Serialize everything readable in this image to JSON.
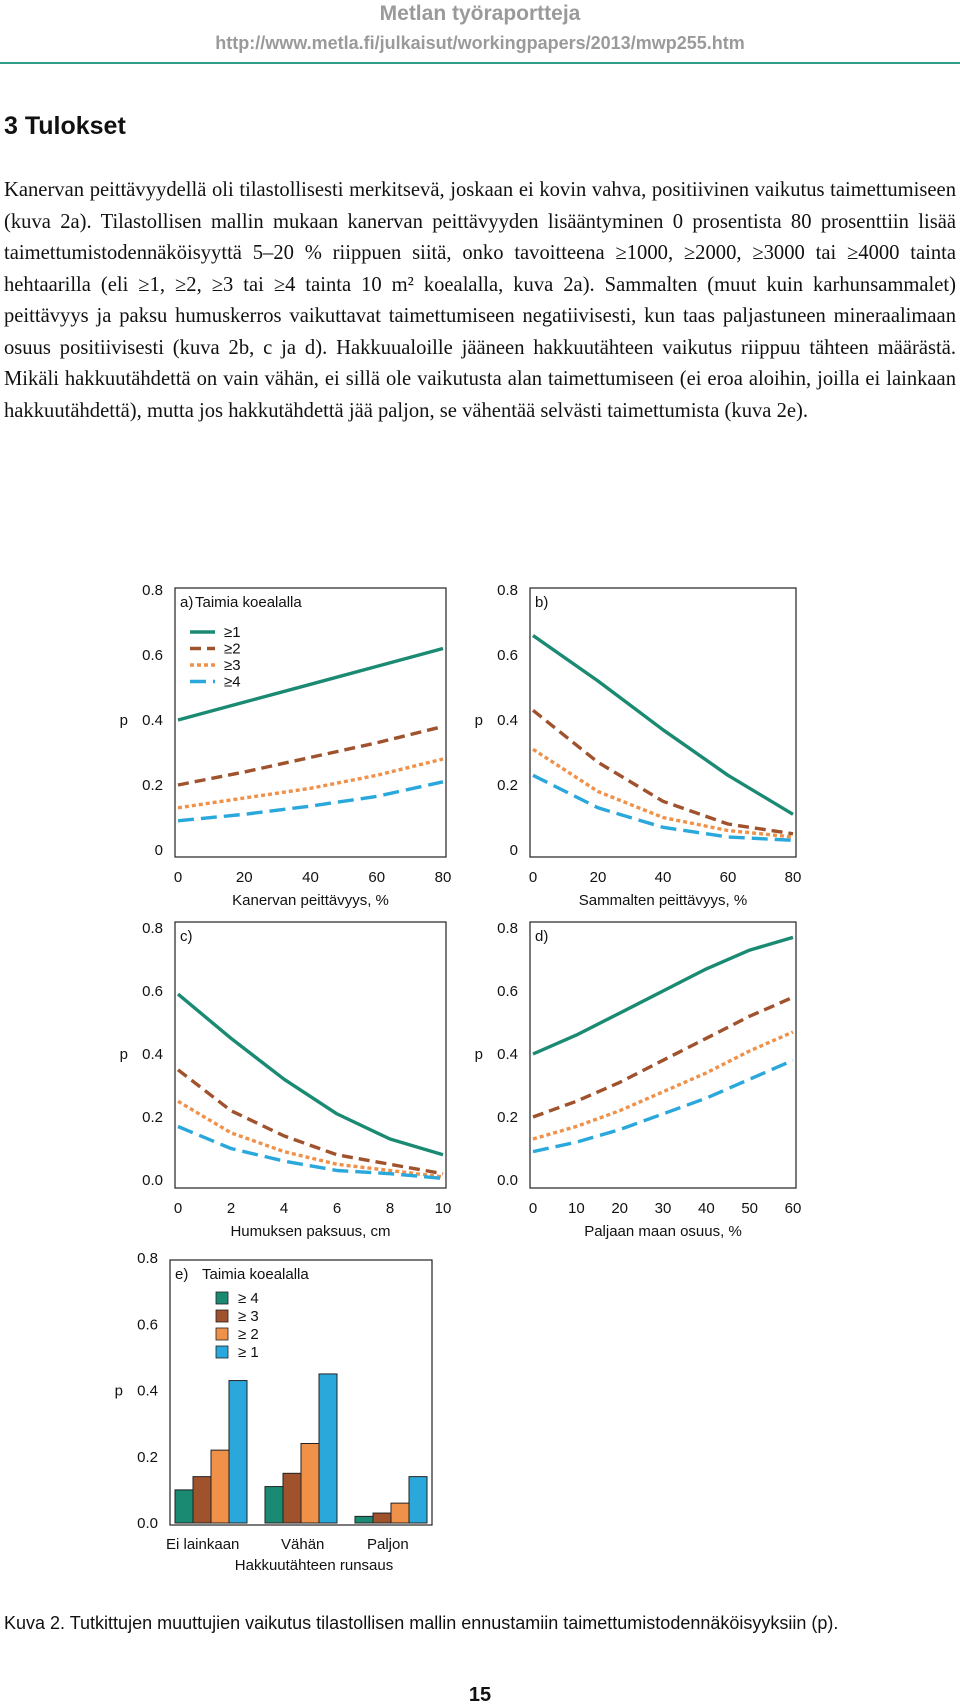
{
  "header": {
    "series": "Metlan työraportteja",
    "url": "http://www.metla.fi/julkaisut/workingpapers/2013/mwp255.htm"
  },
  "section": {
    "heading": "3 Tulokset",
    "paragraph": "Kanervan peittävyydellä oli tilastollisesti merkitsevä, joskaan ei kovin vahva, positiivinen vaikutus taimettumiseen (kuva 2a). Tilastollisen mallin mukaan kanervan peittävyyden lisääntyminen 0 prosentista 80 prosenttiin lisää taimettumistodennäköisyyttä 5–20 % riippuen siitä, onko tavoitteena ≥1000, ≥2000, ≥3000 tai ≥4000 tainta hehtaarilla (eli ≥1, ≥2, ≥3 tai ≥4 tainta 10 m² koealalla, kuva 2a). Sammalten (muut kuin karhunsammalet) peittävyys ja paksu humuskerros vaikuttavat taimettumiseen negatiivisesti, kun taas paljastuneen mineraalimaan osuus positiivisesti (kuva 2b, c ja d). Hakkuualoille jääneen hakkuutähteen vaikutus riippuu tähteen määrästä. Mikäli hakkuutähdettä on vain vähän, ei sillä ole vaikutusta alan taimettumiseen (ei eroa aloihin, joilla ei lainkaan hakkuutähdettä), mutta jos hakkutähdettä jää paljon, se vähentää selvästi taimettumista (kuva 2e)."
  },
  "caption": "Kuva 2. Tutkittujen muuttujien vaikutus tilastollisen mallin ennustamiin taimettumistodennäköisyyksiin (p).",
  "page_number": "15",
  "colors": {
    "s1": "#1a8a73",
    "s2": "#a0522d",
    "s3": "#f0914a",
    "s4": "#2aa8dc"
  },
  "chart_data": [
    {
      "id": "a",
      "type": "line",
      "panel_label": "a)",
      "title": "Taimia koealalla",
      "legend": [
        "≥1",
        "≥2",
        "≥3",
        "≥4"
      ],
      "xlabel": "Kanervan peittävyys, %",
      "ylabel": "p",
      "xlim": [
        0,
        80
      ],
      "ylim": [
        0,
        0.8
      ],
      "xticks": [
        "0",
        "20",
        "40",
        "60",
        "80"
      ],
      "yticks": [
        "0",
        "0.2",
        "0.4",
        "0.6",
        "0.8"
      ],
      "series": [
        {
          "name": "≥1",
          "x": [
            0,
            20,
            40,
            60,
            80
          ],
          "y": [
            0.4,
            0.455,
            0.51,
            0.565,
            0.62
          ]
        },
        {
          "name": "≥2",
          "x": [
            0,
            20,
            40,
            60,
            80
          ],
          "y": [
            0.2,
            0.24,
            0.285,
            0.33,
            0.38
          ]
        },
        {
          "name": "≥3",
          "x": [
            0,
            20,
            40,
            60,
            80
          ],
          "y": [
            0.13,
            0.16,
            0.19,
            0.23,
            0.28
          ]
        },
        {
          "name": "≥4",
          "x": [
            0,
            20,
            40,
            60,
            80
          ],
          "y": [
            0.09,
            0.11,
            0.135,
            0.165,
            0.21
          ]
        }
      ]
    },
    {
      "id": "b",
      "type": "line",
      "panel_label": "b)",
      "xlabel": "Sammalten peittävyys, %",
      "ylabel": "p",
      "xlim": [
        0,
        80
      ],
      "ylim": [
        0,
        0.8
      ],
      "xticks": [
        "0",
        "20",
        "40",
        "60",
        "80"
      ],
      "yticks": [
        "0",
        "0.2",
        "0.4",
        "0.6",
        "0.8"
      ],
      "series": [
        {
          "name": "≥1",
          "x": [
            0,
            20,
            40,
            60,
            80
          ],
          "y": [
            0.66,
            0.52,
            0.37,
            0.23,
            0.11
          ]
        },
        {
          "name": "≥2",
          "x": [
            0,
            20,
            40,
            60,
            80
          ],
          "y": [
            0.43,
            0.27,
            0.15,
            0.08,
            0.05
          ]
        },
        {
          "name": "≥3",
          "x": [
            0,
            20,
            40,
            60,
            80
          ],
          "y": [
            0.31,
            0.18,
            0.1,
            0.06,
            0.04
          ]
        },
        {
          "name": "≥4",
          "x": [
            0,
            20,
            40,
            60,
            80
          ],
          "y": [
            0.23,
            0.13,
            0.07,
            0.04,
            0.03
          ]
        }
      ]
    },
    {
      "id": "c",
      "type": "line",
      "panel_label": "c)",
      "xlabel": "Humuksen paksuus, cm",
      "ylabel": "p",
      "xlim": [
        0,
        10
      ],
      "ylim": [
        0,
        0.8
      ],
      "xticks": [
        "0",
        "2",
        "4",
        "6",
        "8",
        "10"
      ],
      "yticks": [
        "0.0",
        "0.2",
        "0.4",
        "0.6",
        "0.8"
      ],
      "series": [
        {
          "name": "≥1",
          "x": [
            0,
            2,
            4,
            6,
            8,
            10
          ],
          "y": [
            0.59,
            0.45,
            0.32,
            0.21,
            0.13,
            0.08
          ]
        },
        {
          "name": "≥2",
          "x": [
            0,
            2,
            4,
            6,
            8,
            10
          ],
          "y": [
            0.35,
            0.22,
            0.14,
            0.08,
            0.05,
            0.02
          ]
        },
        {
          "name": "≥3",
          "x": [
            0,
            2,
            4,
            6,
            8,
            10
          ],
          "y": [
            0.25,
            0.15,
            0.09,
            0.05,
            0.03,
            0.01
          ]
        },
        {
          "name": "≥4",
          "x": [
            0,
            2,
            4,
            6,
            8,
            10
          ],
          "y": [
            0.17,
            0.1,
            0.06,
            0.03,
            0.02,
            0.005
          ]
        }
      ]
    },
    {
      "id": "d",
      "type": "line",
      "panel_label": "d)",
      "xlabel": "Paljaan maan osuus, %",
      "ylabel": "p",
      "xlim": [
        0,
        60
      ],
      "ylim": [
        0,
        0.8
      ],
      "xticks": [
        "0",
        "10",
        "20",
        "30",
        "40",
        "50",
        "60"
      ],
      "yticks": [
        "0.0",
        "0.2",
        "0.4",
        "0.6",
        "0.8"
      ],
      "series": [
        {
          "name": "≥1",
          "x": [
            0,
            10,
            20,
            30,
            40,
            50,
            60
          ],
          "y": [
            0.4,
            0.46,
            0.53,
            0.6,
            0.67,
            0.73,
            0.77
          ]
        },
        {
          "name": "≥2",
          "x": [
            0,
            10,
            20,
            30,
            40,
            50,
            60
          ],
          "y": [
            0.2,
            0.25,
            0.31,
            0.38,
            0.45,
            0.52,
            0.58
          ]
        },
        {
          "name": "≥3",
          "x": [
            0,
            10,
            20,
            30,
            40,
            50,
            60
          ],
          "y": [
            0.13,
            0.17,
            0.22,
            0.28,
            0.34,
            0.41,
            0.47
          ]
        },
        {
          "name": "≥4",
          "x": [
            0,
            10,
            20,
            30,
            40,
            50,
            60
          ],
          "y": [
            0.09,
            0.12,
            0.16,
            0.21,
            0.26,
            0.32,
            0.38
          ]
        }
      ]
    },
    {
      "id": "e",
      "type": "bar",
      "panel_label": "e)",
      "title": "Taimia koealalla",
      "legend": [
        "≥ 4",
        "≥ 3",
        "≥ 2",
        "≥ 1"
      ],
      "categories": [
        "Ei lainkaan",
        "Vähän",
        "Paljon"
      ],
      "xlabel": "Hakkuutähteen runsaus",
      "ylabel": "p",
      "ylim": [
        0,
        0.8
      ],
      "yticks": [
        "0.0",
        "0.2",
        "0.4",
        "0.6",
        "0.8"
      ],
      "series": [
        {
          "name": "≥ 4",
          "values": [
            0.1,
            0.11,
            0.02
          ]
        },
        {
          "name": "≥ 3",
          "values": [
            0.14,
            0.15,
            0.03
          ]
        },
        {
          "name": "≥ 2",
          "values": [
            0.22,
            0.24,
            0.06
          ]
        },
        {
          "name": "≥ 1",
          "values": [
            0.43,
            0.45,
            0.14
          ]
        }
      ]
    }
  ]
}
